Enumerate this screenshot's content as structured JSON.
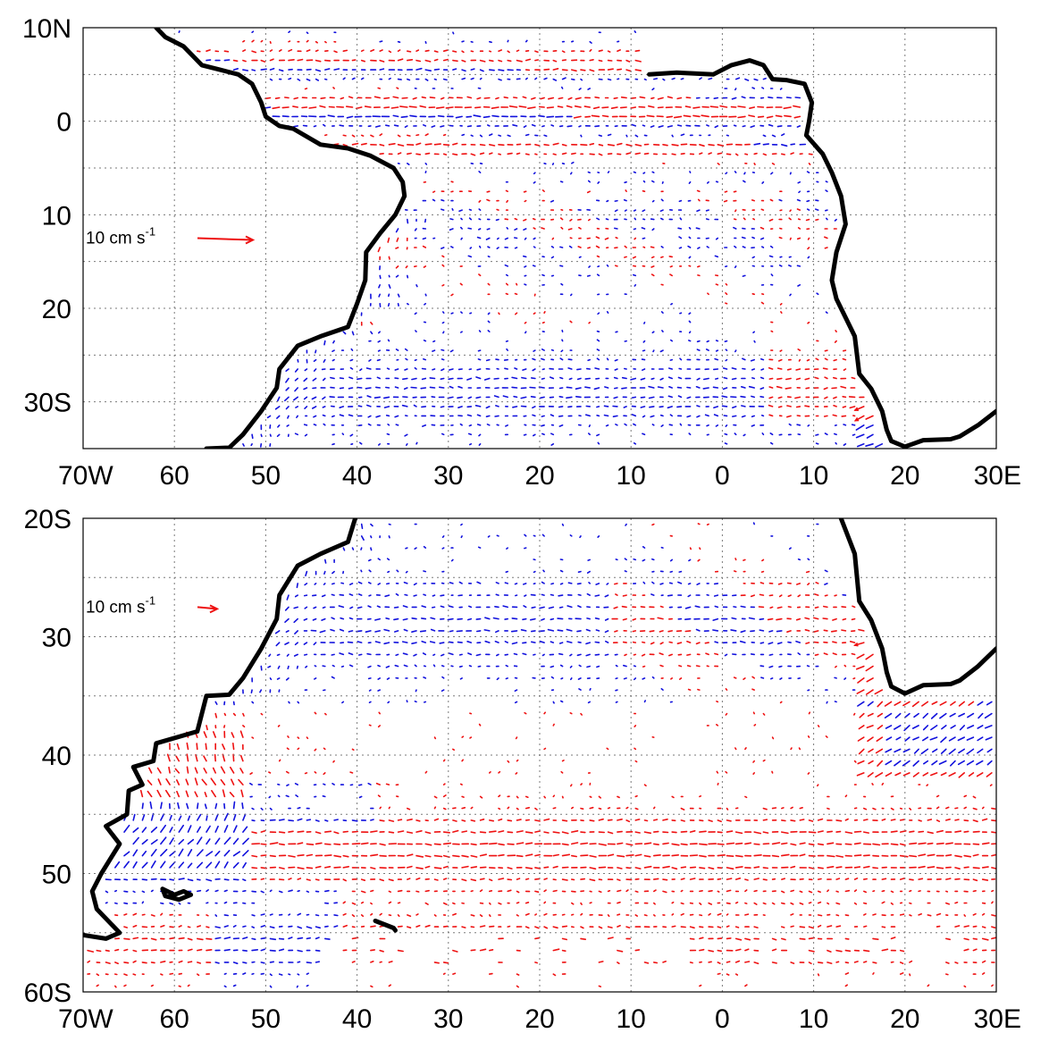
{
  "panels": [
    {
      "id": "top",
      "lon_range": [
        -70,
        30
      ],
      "lat_range": [
        -35,
        10
      ],
      "grid_lon": [
        -60,
        -50,
        -40,
        -30,
        -20,
        -10,
        0,
        10,
        20
      ],
      "grid_lat": [
        -30,
        -25,
        -20,
        -15,
        -10,
        -5,
        0,
        5
      ],
      "x_ticks": [
        {
          "lon": -70,
          "label": "70W"
        },
        {
          "lon": -60,
          "label": "60"
        },
        {
          "lon": -50,
          "label": "50"
        },
        {
          "lon": -40,
          "label": "40"
        },
        {
          "lon": -30,
          "label": "30"
        },
        {
          "lon": -20,
          "label": "20"
        },
        {
          "lon": -10,
          "label": "10"
        },
        {
          "lon": 0,
          "label": "0"
        },
        {
          "lon": 10,
          "label": "10"
        },
        {
          "lon": 20,
          "label": "20"
        },
        {
          "lon": 30,
          "label": "30E"
        }
      ],
      "y_ticks": [
        {
          "lat": 10,
          "label": "10N"
        },
        {
          "lat": 0,
          "label": "0"
        },
        {
          "lat": -10,
          "label": "10"
        },
        {
          "lat": -20,
          "label": "20"
        },
        {
          "lat": -30,
          "label": "30S"
        }
      ],
      "scale": {
        "text": "10 cm s",
        "exp": "-1",
        "lon": -57.5,
        "lat": -12.5,
        "length_cm_s": 10
      }
    },
    {
      "id": "bottom",
      "lon_range": [
        -70,
        30
      ],
      "lat_range": [
        -60,
        -20
      ],
      "grid_lon": [
        -60,
        -50,
        -40,
        -30,
        -20,
        -10,
        0,
        10,
        20
      ],
      "grid_lat": [
        -55,
        -50,
        -45,
        -40,
        -35,
        -30,
        -25
      ],
      "x_ticks": [
        {
          "lon": -70,
          "label": "70W"
        },
        {
          "lon": -60,
          "label": "60"
        },
        {
          "lon": -50,
          "label": "50"
        },
        {
          "lon": -40,
          "label": "40"
        },
        {
          "lon": -30,
          "label": "30"
        },
        {
          "lon": -20,
          "label": "20"
        },
        {
          "lon": -10,
          "label": "10"
        },
        {
          "lon": 0,
          "label": "0"
        },
        {
          "lon": 10,
          "label": "10"
        },
        {
          "lon": 20,
          "label": "20"
        },
        {
          "lon": 30,
          "label": "30E"
        }
      ],
      "y_ticks": [
        {
          "lat": -20,
          "label": "20S"
        },
        {
          "lat": -30,
          "label": "30"
        },
        {
          "lat": -40,
          "label": "40"
        },
        {
          "lat": -50,
          "label": "50"
        },
        {
          "lat": -60,
          "label": "60S"
        }
      ],
      "scale": {
        "text": "10 cm s",
        "exp": "-1",
        "lon": -57.5,
        "lat": -27.5,
        "length_cm_s": 10
      }
    }
  ],
  "colors": {
    "positive": "#ee1111",
    "negative": "#1111dd",
    "coast": "#000000",
    "grid": "#7a7a7a"
  },
  "coastline": {
    "south_america": [
      [
        -62,
        10
      ],
      [
        -61,
        9
      ],
      [
        -59,
        8
      ],
      [
        -57,
        6
      ],
      [
        -55,
        5.5
      ],
      [
        -53,
        5
      ],
      [
        -51.5,
        4
      ],
      [
        -50.5,
        2
      ],
      [
        -50,
        0.5
      ],
      [
        -48.5,
        -0.5
      ],
      [
        -47,
        -0.8
      ],
      [
        -44,
        -2.5
      ],
      [
        -41,
        -2.9
      ],
      [
        -38.5,
        -3.7
      ],
      [
        -36,
        -5
      ],
      [
        -35,
        -6.5
      ],
      [
        -34.8,
        -8
      ],
      [
        -35.8,
        -10
      ],
      [
        -37.5,
        -12
      ],
      [
        -39,
        -14
      ],
      [
        -39.1,
        -17
      ],
      [
        -40,
        -19.5
      ],
      [
        -41,
        -22
      ],
      [
        -44,
        -23
      ],
      [
        -46.5,
        -24
      ],
      [
        -48.5,
        -26.5
      ],
      [
        -48.8,
        -28.5
      ],
      [
        -50.5,
        -31
      ],
      [
        -52.5,
        -33.5
      ],
      [
        -54,
        -34.9
      ],
      [
        -56.5,
        -35
      ],
      [
        -57,
        -36.5
      ],
      [
        -57.5,
        -38
      ],
      [
        -62,
        -39
      ],
      [
        -62.3,
        -40.5
      ],
      [
        -64.5,
        -41
      ],
      [
        -63.5,
        -42.5
      ],
      [
        -65,
        -43
      ],
      [
        -65.2,
        -45
      ],
      [
        -67.5,
        -46
      ],
      [
        -66,
        -47.5
      ],
      [
        -68,
        -50
      ],
      [
        -69,
        -51.5
      ],
      [
        -68.5,
        -53
      ],
      [
        -66,
        -55
      ],
      [
        -67.5,
        -55.5
      ],
      [
        -70,
        -55.2
      ]
    ],
    "africa": [
      [
        -8,
        5
      ],
      [
        -5,
        5.2
      ],
      [
        -3,
        5.1
      ],
      [
        -1,
        5
      ],
      [
        1,
        6
      ],
      [
        3,
        6.5
      ],
      [
        4.5,
        6
      ],
      [
        5.5,
        4.5
      ],
      [
        7,
        4.4
      ],
      [
        9,
        4
      ],
      [
        9.8,
        2
      ],
      [
        9.5,
        0
      ],
      [
        9.2,
        -1.5
      ],
      [
        11,
        -3.5
      ],
      [
        12,
        -5.5
      ],
      [
        13,
        -8
      ],
      [
        13.5,
        -11
      ],
      [
        12.5,
        -14
      ],
      [
        12,
        -17
      ],
      [
        12.5,
        -19
      ],
      [
        14,
        -22
      ],
      [
        14.5,
        -23
      ],
      [
        15,
        -27
      ],
      [
        16.3,
        -28.6
      ],
      [
        17.5,
        -31
      ],
      [
        18,
        -33
      ],
      [
        18.5,
        -34.2
      ],
      [
        20,
        -34.8
      ],
      [
        22,
        -34.1
      ],
      [
        25,
        -34
      ],
      [
        26,
        -33.7
      ],
      [
        28,
        -32.5
      ],
      [
        30,
        -31
      ]
    ],
    "falklands": [
      [
        -61.3,
        -51.3
      ],
      [
        -60,
        -51.8
      ],
      [
        -59,
        -51.5
      ],
      [
        -58.2,
        -51.8
      ],
      [
        -59.5,
        -52.2
      ],
      [
        -61,
        -51.9
      ],
      [
        -61.3,
        -51.3
      ]
    ],
    "south_georgia": [
      [
        -38,
        -54
      ],
      [
        -37,
        -54.3
      ],
      [
        -36,
        -54.6
      ],
      [
        -35.8,
        -54.8
      ]
    ]
  }
}
